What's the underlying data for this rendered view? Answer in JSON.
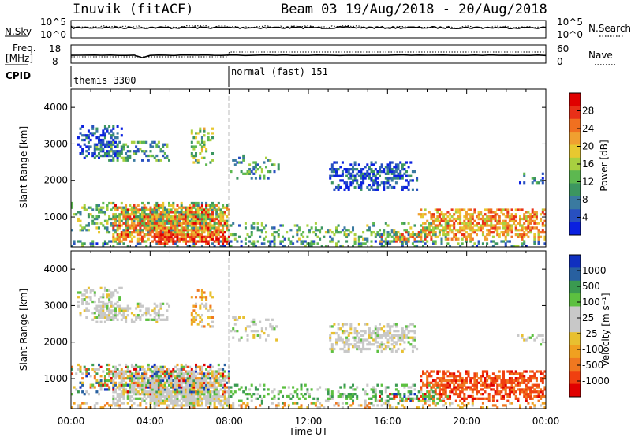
{
  "header": {
    "title": "Inuvik (fitACF)",
    "beam": "Beam 03 19/Aug/2018 - 20/Aug/2018"
  },
  "panels": {
    "nsky_label": "N.Sky",
    "nsky_ticks": [
      "10^5",
      "10^0"
    ],
    "nsearch_label": "N.Search",
    "nsearch_ticks": [
      "10^5",
      "10^0"
    ],
    "freq_label_1": "Freq.",
    "freq_label_2": "[MHz]",
    "freq_ticks": [
      "18",
      "8"
    ],
    "nave_label": "Nave",
    "nave_ticks": [
      "60",
      "0"
    ],
    "cpid_label": "CPID",
    "cpid_segments": [
      "themis 3300",
      "normal (fast) 151"
    ]
  },
  "chart_data": [
    {
      "type": "heatmap",
      "name": "power",
      "ylabel": "Slant Range [km]",
      "yticks": [
        "4000",
        "3000",
        "2000",
        "1000"
      ],
      "ylim": [
        180,
        4500
      ],
      "xlim_hours": [
        0,
        24
      ],
      "colorbar_label": "Power [dB]",
      "colorbar_ticks": [
        "28",
        "24",
        "20",
        "16",
        "12",
        "8",
        "4"
      ],
      "colorbar_colors": [
        "#0a20e0",
        "#2850c0",
        "#3a7aa0",
        "#3c9660",
        "#5db850",
        "#a8d040",
        "#e8c830",
        "#f0a030",
        "#f07020",
        "#e83018",
        "#e00000"
      ]
    },
    {
      "type": "heatmap",
      "name": "velocity",
      "ylabel": "Slant Range [km]",
      "yticks": [
        "4000",
        "3000",
        "2000",
        "1000"
      ],
      "ylim": [
        180,
        4500
      ],
      "xlim_hours": [
        0,
        24
      ],
      "colorbar_label": "Velocity [m s⁻¹]",
      "colorbar_ticks": [
        "1000",
        "500",
        "100",
        "25",
        "-25",
        "-100",
        "-500",
        "-1000"
      ],
      "colorbar_colors": [
        "#e00000",
        "#f04010",
        "#f07820",
        "#f0a020",
        "#e8c030",
        "#c8c8c8",
        "#c8c8c8",
        "#5cc040",
        "#3a9a50",
        "#2860a0",
        "#1030c0"
      ]
    }
  ],
  "x_axis": {
    "ticks": [
      "00:00",
      "04:00",
      "08:00",
      "12:00",
      "16:00",
      "20:00",
      "00:00"
    ],
    "label": "Time UT"
  }
}
